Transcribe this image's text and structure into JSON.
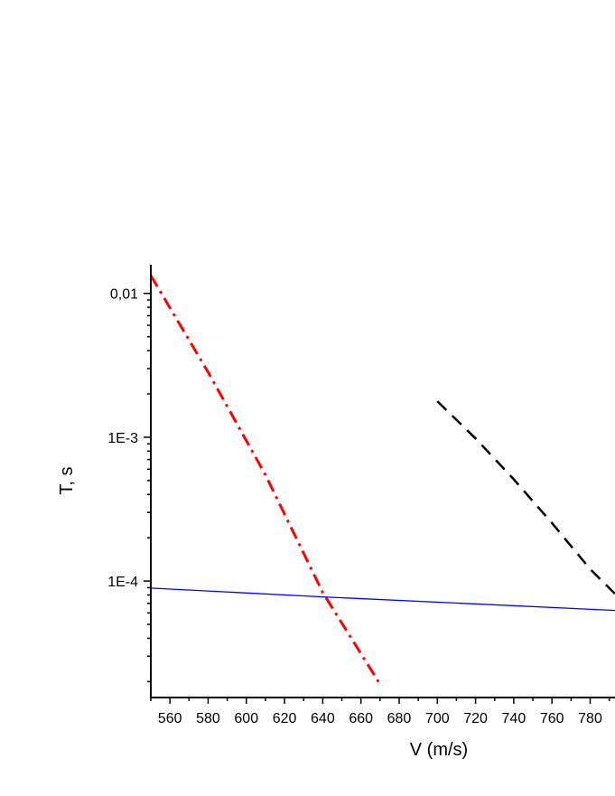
{
  "chart_data": {
    "type": "line",
    "title": "",
    "xlabel": "V (m/s)",
    "ylabel": "T, s",
    "xlim": [
      550,
      793
    ],
    "ylim": [
      1.55e-05,
      0.0143
    ],
    "yscale": "log",
    "grid": false,
    "x_ticks": [
      560,
      580,
      600,
      620,
      640,
      660,
      680,
      700,
      720,
      740,
      760,
      780
    ],
    "y_ticks": [
      {
        "value": 0.01,
        "label": "0,01"
      },
      {
        "value": 0.001,
        "label": "1E-3"
      },
      {
        "value": 0.0001,
        "label": "1E-4"
      }
    ],
    "series": [
      {
        "color": "#ff0000",
        "style": "dash-dot",
        "x": [
          550,
          580,
          610,
          640,
          670
        ],
        "y": [
          0.0133,
          0.00283,
          0.000547,
          8.32e-05,
          1.92e-05
        ]
      },
      {
        "color": "#000000",
        "style": "dashed",
        "x": [
          700,
          720,
          740,
          760,
          780,
          793
        ],
        "y": [
          0.00178,
          0.00098,
          0.00051,
          0.000253,
          0.000121,
          8.16e-05
        ]
      },
      {
        "color": "#0000ff",
        "style": "solid",
        "x": [
          550,
          640,
          793
        ],
        "y": [
          8.93e-05,
          7.76e-05,
          6.25e-05
        ]
      }
    ]
  }
}
